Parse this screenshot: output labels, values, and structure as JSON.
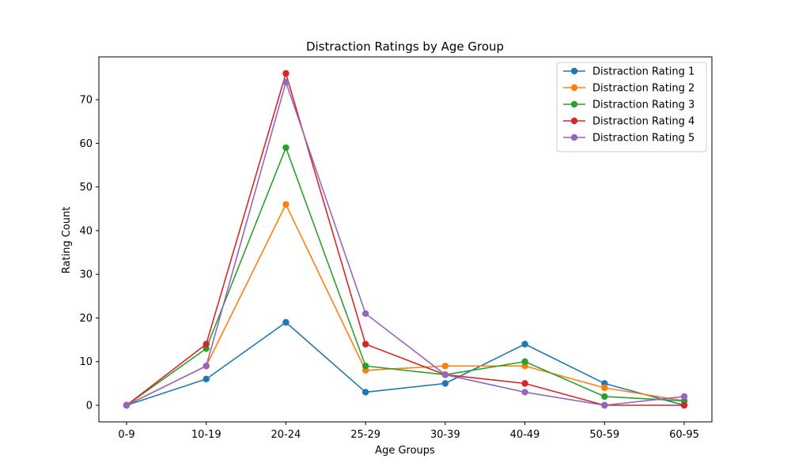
{
  "chart_data": {
    "type": "line",
    "title": "Distraction Ratings by Age Group",
    "xlabel": "Age Groups",
    "ylabel": "Rating Count",
    "categories": [
      "0-9",
      "10-19",
      "20-24",
      "25-29",
      "30-39",
      "40-49",
      "50-59",
      "60-95"
    ],
    "ylim": [
      -3.8,
      79.8
    ],
    "yticks": [
      0,
      10,
      20,
      30,
      40,
      50,
      60,
      70
    ],
    "grid": false,
    "legend_position": "top-right",
    "series": [
      {
        "name": "Distraction Rating 1",
        "color": "#1f77b4",
        "values": [
          0,
          6,
          19,
          3,
          5,
          14,
          5,
          0
        ]
      },
      {
        "name": "Distraction Rating 2",
        "color": "#ff7f0e",
        "values": [
          0,
          9,
          46,
          8,
          9,
          9,
          4,
          1
        ]
      },
      {
        "name": "Distraction Rating 3",
        "color": "#2ca02c",
        "values": [
          0,
          13,
          59,
          9,
          7,
          10,
          2,
          1
        ]
      },
      {
        "name": "Distraction Rating 4",
        "color": "#d62728",
        "values": [
          0,
          14,
          76,
          14,
          7,
          5,
          0,
          0
        ]
      },
      {
        "name": "Distraction Rating 5",
        "color": "#9467bd",
        "values": [
          0,
          9,
          74,
          21,
          7,
          3,
          0,
          2
        ]
      }
    ]
  }
}
